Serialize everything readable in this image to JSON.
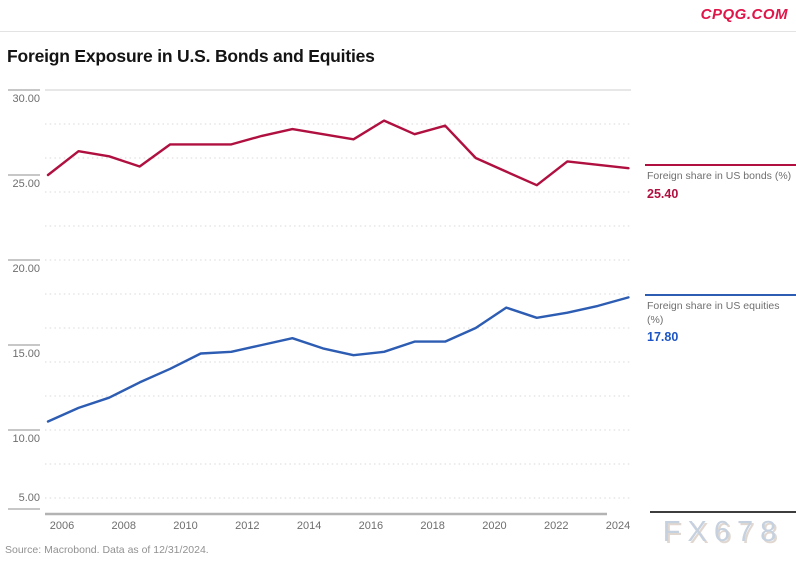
{
  "header": {
    "brand": "CPQG.COM",
    "title": "Foreign Exposure in U.S. Bonds and Equities"
  },
  "legend": {
    "bonds": {
      "label": "Foreign share in US bonds (%)",
      "value": "25.40"
    },
    "equities": {
      "label": "Foreign share in US equities (%)",
      "value": "17.80"
    }
  },
  "source_note": "Source: Macrobond. Data as of 12/31/2024.",
  "watermark": "FX678",
  "colors": {
    "bonds_line": "#b01040",
    "equities_line": "#2d5cb3",
    "bonds_value_text": "#b01040",
    "equities_value_text": "#1d56c4",
    "brand_red": "#e0164a",
    "axis_gray": "#b3b3b3",
    "grid_dotted": "#d9d9d9",
    "tick_line": "#8f8f8f",
    "label_gray": "#6e6e6e",
    "watermark_blue_gray": "#c6d1df"
  },
  "chart_data": {
    "type": "line",
    "title": "Foreign Exposure in U.S. Bonds and Equities",
    "x": [
      2005,
      2006,
      2007,
      2008,
      2009,
      2010,
      2011,
      2012,
      2013,
      2014,
      2015,
      2016,
      2017,
      2018,
      2019,
      2020,
      2021,
      2022,
      2023,
      2024
    ],
    "series": [
      {
        "name": "Foreign share in US bonds (%)",
        "color": "#b01040",
        "last_value_label": "25.40",
        "values": [
          25.0,
          26.4,
          26.1,
          25.5,
          26.8,
          26.8,
          26.8,
          27.3,
          27.7,
          27.4,
          27.1,
          28.2,
          27.4,
          27.9,
          26.0,
          25.2,
          24.4,
          25.8,
          25.6,
          25.4
        ]
      },
      {
        "name": "Foreign share in US equities (%)",
        "color": "#2d5cb3",
        "last_value_label": "17.80",
        "values": [
          10.5,
          11.3,
          11.9,
          12.8,
          13.6,
          14.5,
          14.6,
          15.0,
          15.4,
          14.8,
          14.4,
          14.6,
          15.2,
          15.2,
          16.0,
          17.2,
          16.6,
          16.9,
          17.3,
          17.8
        ]
      }
    ],
    "ylim": [
      5,
      30
    ],
    "yticks": [
      30,
      25,
      20,
      15,
      10,
      5
    ],
    "ytick_labels": [
      "30.00",
      "25.00",
      "20.00",
      "15.00",
      "10.00",
      "5.00"
    ],
    "xtick_years": [
      2006,
      2008,
      2010,
      2012,
      2014,
      2016,
      2018,
      2020,
      2022,
      2024
    ],
    "grid": "dotted horizontal lines every 2 units (6..28), solid light line at 30",
    "legend_position": "right, line markers with last value labels",
    "xlabel": "",
    "ylabel": ""
  }
}
